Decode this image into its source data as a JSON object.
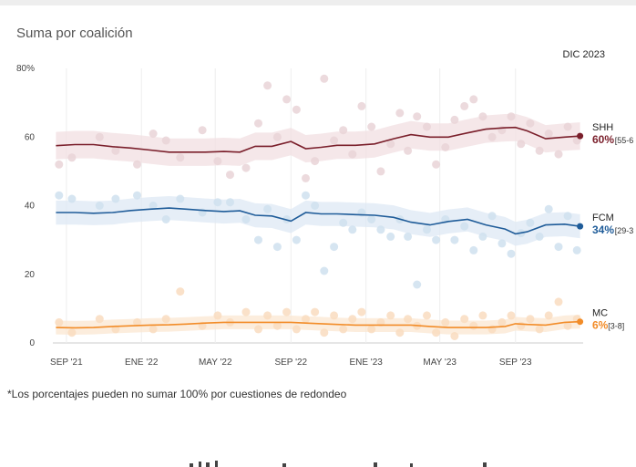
{
  "title": "Suma por coalición",
  "date_label": "DIC 2023",
  "footnote": "*Los porcentajes pueden no sumar 100% por cuestiones de redondeo",
  "chart_data": {
    "type": "line",
    "title": "Suma por coalición",
    "ylim": [
      0,
      80
    ],
    "yticks": [
      {
        "v": 0,
        "label": "0"
      },
      {
        "v": 20,
        "label": "20"
      },
      {
        "v": 40,
        "label": "40"
      },
      {
        "v": 60,
        "label": "60"
      },
      {
        "v": 80,
        "label": "80%"
      }
    ],
    "xlim": [
      "2021-08-10",
      "2023-12-20"
    ],
    "xticks": [
      {
        "date": "2021-09-01",
        "label": "SEP '21"
      },
      {
        "date": "2022-01-01",
        "label": "ENE '22"
      },
      {
        "date": "2022-05-01",
        "label": "MAY '22"
      },
      {
        "date": "2022-09-01",
        "label": "SEP '22"
      },
      {
        "date": "2023-01-01",
        "label": "ENE '23"
      },
      {
        "date": "2023-05-01",
        "label": "MAY '23"
      },
      {
        "date": "2023-09-01",
        "label": "SEP '23"
      }
    ],
    "grid": "vertical",
    "series": [
      {
        "name": "SHH",
        "value_label": "60%",
        "range_label": "[55-6",
        "color": "#7a1f2b",
        "band_color": "#f1dfe2",
        "dot_color": "#e9d3d7",
        "band_width": 4,
        "points": [
          [
            "2021-08-15",
            57.5
          ],
          [
            "2021-09-15",
            57.8
          ],
          [
            "2021-10-15",
            57.8
          ],
          [
            "2021-11-15",
            57.2
          ],
          [
            "2021-12-15",
            56.8
          ],
          [
            "2022-01-15",
            56.2
          ],
          [
            "2022-02-15",
            55.6
          ],
          [
            "2022-03-15",
            55.6
          ],
          [
            "2022-04-15",
            55.6
          ],
          [
            "2022-05-15",
            55.8
          ],
          [
            "2022-06-10",
            55.6
          ],
          [
            "2022-07-05",
            57.3
          ],
          [
            "2022-08-01",
            57.3
          ],
          [
            "2022-09-01",
            58.7
          ],
          [
            "2022-09-25",
            56.6
          ],
          [
            "2022-10-20",
            57.0
          ],
          [
            "2022-11-15",
            57.6
          ],
          [
            "2022-12-15",
            57.6
          ],
          [
            "2023-01-15",
            58.0
          ],
          [
            "2023-02-15",
            59.5
          ],
          [
            "2023-03-15",
            60.7
          ],
          [
            "2023-04-15",
            60.0
          ],
          [
            "2023-05-15",
            60.0
          ],
          [
            "2023-06-15",
            61.2
          ],
          [
            "2023-07-15",
            62.3
          ],
          [
            "2023-08-15",
            62.7
          ],
          [
            "2023-09-01",
            62.8
          ],
          [
            "2023-09-20",
            61.8
          ],
          [
            "2023-10-20",
            59.5
          ],
          [
            "2023-11-20",
            60.0
          ],
          [
            "2023-12-15",
            60.3
          ]
        ],
        "dots": [
          [
            "2021-08-20",
            52
          ],
          [
            "2021-09-10",
            54
          ],
          [
            "2021-10-25",
            60
          ],
          [
            "2021-11-20",
            56
          ],
          [
            "2021-12-25",
            52
          ],
          [
            "2022-01-20",
            61
          ],
          [
            "2022-02-10",
            59
          ],
          [
            "2022-03-05",
            54
          ],
          [
            "2022-04-10",
            62
          ],
          [
            "2022-05-05",
            53
          ],
          [
            "2022-05-25",
            49
          ],
          [
            "2022-06-20",
            51
          ],
          [
            "2022-07-10",
            64
          ],
          [
            "2022-07-25",
            75
          ],
          [
            "2022-08-10",
            60
          ],
          [
            "2022-08-25",
            71
          ],
          [
            "2022-09-10",
            68
          ],
          [
            "2022-09-25",
            48
          ],
          [
            "2022-10-10",
            53
          ],
          [
            "2022-10-25",
            77
          ],
          [
            "2022-11-10",
            59
          ],
          [
            "2022-11-25",
            62
          ],
          [
            "2022-12-10",
            55
          ],
          [
            "2022-12-25",
            69
          ],
          [
            "2023-01-10",
            63
          ],
          [
            "2023-01-25",
            50
          ],
          [
            "2023-02-10",
            58
          ],
          [
            "2023-02-25",
            67
          ],
          [
            "2023-03-10",
            56
          ],
          [
            "2023-03-25",
            66
          ],
          [
            "2023-04-10",
            63
          ],
          [
            "2023-04-25",
            52
          ],
          [
            "2023-05-10",
            57
          ],
          [
            "2023-05-25",
            65
          ],
          [
            "2023-06-10",
            69
          ],
          [
            "2023-06-25",
            71
          ],
          [
            "2023-07-10",
            66
          ],
          [
            "2023-07-25",
            60
          ],
          [
            "2023-08-10",
            62
          ],
          [
            "2023-08-25",
            66
          ],
          [
            "2023-09-10",
            58
          ],
          [
            "2023-09-25",
            64
          ],
          [
            "2023-10-10",
            56
          ],
          [
            "2023-10-25",
            61
          ],
          [
            "2023-11-10",
            55
          ],
          [
            "2023-11-25",
            63
          ],
          [
            "2023-12-10",
            59
          ]
        ]
      },
      {
        "name": "FCM",
        "value_label": "34%",
        "range_label": "[29-3",
        "color": "#1f5c99",
        "band_color": "#dde8f4",
        "dot_color": "#cfe0ee",
        "band_width": 3.5,
        "points": [
          [
            "2021-08-15",
            38.0
          ],
          [
            "2021-09-15",
            38.0
          ],
          [
            "2021-10-15",
            37.8
          ],
          [
            "2021-11-15",
            38.0
          ],
          [
            "2021-12-15",
            38.6
          ],
          [
            "2022-01-15",
            39.0
          ],
          [
            "2022-02-15",
            39.3
          ],
          [
            "2022-03-15",
            39.0
          ],
          [
            "2022-04-15",
            38.6
          ],
          [
            "2022-05-15",
            38.3
          ],
          [
            "2022-06-10",
            38.5
          ],
          [
            "2022-07-05",
            37.2
          ],
          [
            "2022-08-01",
            37.0
          ],
          [
            "2022-09-01",
            35.5
          ],
          [
            "2022-09-25",
            38.0
          ],
          [
            "2022-10-20",
            37.6
          ],
          [
            "2022-11-15",
            37.6
          ],
          [
            "2022-12-15",
            37.4
          ],
          [
            "2023-01-15",
            37.2
          ],
          [
            "2023-02-15",
            36.6
          ],
          [
            "2023-03-15",
            35.2
          ],
          [
            "2023-04-15",
            34.4
          ],
          [
            "2023-05-15",
            35.4
          ],
          [
            "2023-06-15",
            36.0
          ],
          [
            "2023-07-15",
            34.4
          ],
          [
            "2023-08-15",
            33.2
          ],
          [
            "2023-09-01",
            31.8
          ],
          [
            "2023-09-20",
            32.4
          ],
          [
            "2023-10-20",
            34.4
          ],
          [
            "2023-11-20",
            34.6
          ],
          [
            "2023-12-15",
            34.0
          ]
        ],
        "dots": [
          [
            "2021-08-20",
            43
          ],
          [
            "2021-09-10",
            42
          ],
          [
            "2021-10-25",
            40
          ],
          [
            "2021-11-20",
            42
          ],
          [
            "2021-12-25",
            43
          ],
          [
            "2022-01-20",
            40
          ],
          [
            "2022-02-10",
            36
          ],
          [
            "2022-03-05",
            42
          ],
          [
            "2022-04-10",
            38
          ],
          [
            "2022-05-05",
            41
          ],
          [
            "2022-05-25",
            41
          ],
          [
            "2022-06-20",
            36
          ],
          [
            "2022-07-10",
            30
          ],
          [
            "2022-07-25",
            39
          ],
          [
            "2022-08-10",
            28
          ],
          [
            "2022-08-25",
            36
          ],
          [
            "2022-09-10",
            30
          ],
          [
            "2022-09-25",
            43
          ],
          [
            "2022-10-10",
            40
          ],
          [
            "2022-10-25",
            21
          ],
          [
            "2022-11-10",
            28
          ],
          [
            "2022-11-25",
            35
          ],
          [
            "2022-12-10",
            33
          ],
          [
            "2022-12-25",
            38
          ],
          [
            "2023-01-10",
            36
          ],
          [
            "2023-01-25",
            33
          ],
          [
            "2023-02-10",
            31
          ],
          [
            "2023-02-25",
            36
          ],
          [
            "2023-03-10",
            31
          ],
          [
            "2023-03-25",
            17
          ],
          [
            "2023-04-10",
            33
          ],
          [
            "2023-04-25",
            30
          ],
          [
            "2023-05-10",
            36
          ],
          [
            "2023-05-25",
            30
          ],
          [
            "2023-06-10",
            34
          ],
          [
            "2023-06-25",
            27
          ],
          [
            "2023-07-10",
            31
          ],
          [
            "2023-07-25",
            37
          ],
          [
            "2023-08-10",
            29
          ],
          [
            "2023-08-25",
            26
          ],
          [
            "2023-09-10",
            32
          ],
          [
            "2023-09-25",
            35
          ],
          [
            "2023-10-10",
            31
          ],
          [
            "2023-10-25",
            39
          ],
          [
            "2023-11-10",
            28
          ],
          [
            "2023-11-25",
            37
          ],
          [
            "2023-12-10",
            27
          ]
        ]
      },
      {
        "name": "MC",
        "value_label": "6%",
        "range_label": "[3-8]",
        "color": "#f28c28",
        "band_color": "#fbe7d2",
        "dot_color": "#f9dcc0",
        "band_width": 2,
        "points": [
          [
            "2021-08-15",
            4.5
          ],
          [
            "2021-09-15",
            4.4
          ],
          [
            "2021-10-15",
            4.5
          ],
          [
            "2021-11-15",
            4.8
          ],
          [
            "2021-12-15",
            5.0
          ],
          [
            "2022-01-15",
            5.2
          ],
          [
            "2022-02-15",
            5.3
          ],
          [
            "2022-03-15",
            5.5
          ],
          [
            "2022-04-15",
            5.8
          ],
          [
            "2022-05-15",
            6.0
          ],
          [
            "2022-06-10",
            6.0
          ],
          [
            "2022-07-05",
            6.0
          ],
          [
            "2022-08-01",
            6.0
          ],
          [
            "2022-09-01",
            6.0
          ],
          [
            "2022-09-25",
            5.8
          ],
          [
            "2022-10-20",
            5.6
          ],
          [
            "2022-11-15",
            5.4
          ],
          [
            "2022-12-15",
            5.2
          ],
          [
            "2023-01-15",
            5.2
          ],
          [
            "2023-02-15",
            5.2
          ],
          [
            "2023-03-15",
            5.2
          ],
          [
            "2023-04-15",
            4.8
          ],
          [
            "2023-05-15",
            4.5
          ],
          [
            "2023-06-15",
            4.5
          ],
          [
            "2023-07-15",
            4.5
          ],
          [
            "2023-08-15",
            4.8
          ],
          [
            "2023-09-01",
            5.6
          ],
          [
            "2023-09-20",
            5.4
          ],
          [
            "2023-10-20",
            5.2
          ],
          [
            "2023-11-20",
            6.0
          ],
          [
            "2023-12-15",
            6.2
          ]
        ],
        "dots": [
          [
            "2021-08-20",
            6
          ],
          [
            "2021-09-10",
            3
          ],
          [
            "2021-10-25",
            7
          ],
          [
            "2021-11-20",
            4
          ],
          [
            "2021-12-25",
            6
          ],
          [
            "2022-01-20",
            4
          ],
          [
            "2022-02-10",
            7
          ],
          [
            "2022-03-05",
            15
          ],
          [
            "2022-04-10",
            5
          ],
          [
            "2022-05-05",
            8
          ],
          [
            "2022-05-25",
            6
          ],
          [
            "2022-06-20",
            9
          ],
          [
            "2022-07-10",
            4
          ],
          [
            "2022-07-25",
            8
          ],
          [
            "2022-08-10",
            5
          ],
          [
            "2022-08-25",
            9
          ],
          [
            "2022-09-10",
            4
          ],
          [
            "2022-09-25",
            7
          ],
          [
            "2022-10-10",
            9
          ],
          [
            "2022-10-25",
            3
          ],
          [
            "2022-11-10",
            8
          ],
          [
            "2022-11-25",
            4
          ],
          [
            "2022-12-10",
            7
          ],
          [
            "2022-12-25",
            9
          ],
          [
            "2023-01-10",
            4
          ],
          [
            "2023-01-25",
            6
          ],
          [
            "2023-02-10",
            8
          ],
          [
            "2023-02-25",
            3
          ],
          [
            "2023-03-10",
            7
          ],
          [
            "2023-03-25",
            5
          ],
          [
            "2023-04-10",
            8
          ],
          [
            "2023-04-25",
            3
          ],
          [
            "2023-05-10",
            6
          ],
          [
            "2023-05-25",
            2
          ],
          [
            "2023-06-10",
            7
          ],
          [
            "2023-06-25",
            5
          ],
          [
            "2023-07-10",
            8
          ],
          [
            "2023-07-25",
            4
          ],
          [
            "2023-08-10",
            6
          ],
          [
            "2023-08-25",
            8
          ],
          [
            "2023-09-10",
            5
          ],
          [
            "2023-09-25",
            7
          ],
          [
            "2023-10-10",
            4
          ],
          [
            "2023-10-25",
            8
          ],
          [
            "2023-11-10",
            12
          ],
          [
            "2023-11-25",
            5
          ],
          [
            "2023-12-10",
            7
          ]
        ]
      }
    ]
  }
}
